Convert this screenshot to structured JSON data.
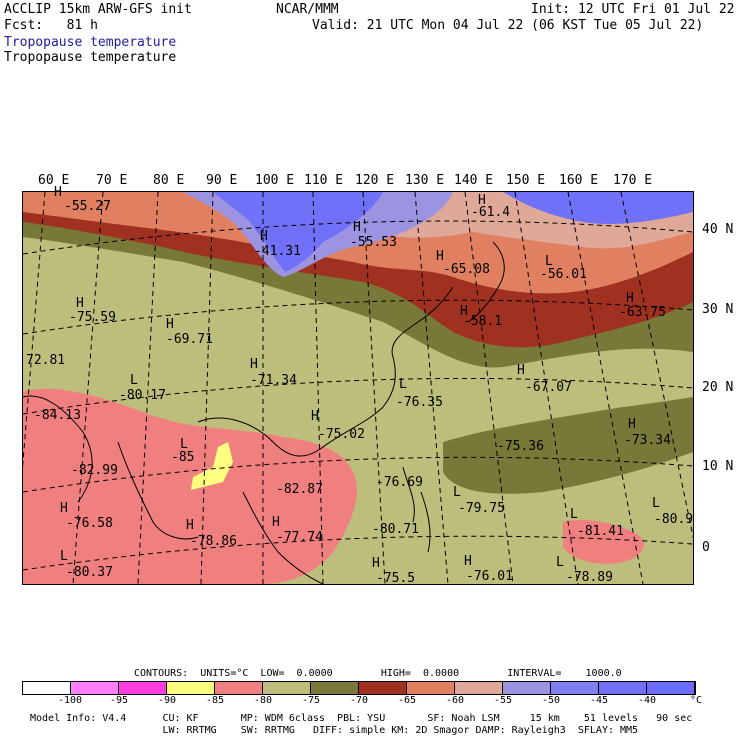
{
  "header": {
    "model": "ACCLIP 15km ARW-GFS init",
    "center": "NCAR/MMM",
    "init": "Init: 12 UTC Fri 01 Jul 22",
    "fcst": "Fcst:   81 h",
    "valid": "Valid: 21 UTC Mon 04 Jul 22 (06 KST Tue 05 Jul 22)",
    "field_title_blue": "Tropopause temperature",
    "field_title_black": "Tropopause temperature",
    "title_blue_color": "#2020a0"
  },
  "lon_labels": [
    "60 E",
    "70 E",
    "80 E",
    "90 E",
    "100 E",
    "110 E",
    "120 E",
    "130 E",
    "140 E",
    "150 E",
    "160 E",
    "170 E"
  ],
  "lat_labels": [
    "40 N",
    "30 N",
    "20 N",
    "10 N",
    "0"
  ],
  "centers": [
    {
      "type": "H",
      "value": "-55.27"
    },
    {
      "type": "H",
      "value": "-41.31"
    },
    {
      "type": "H",
      "value": "-55.53"
    },
    {
      "type": "H",
      "value": "-61.4"
    },
    {
      "type": "H",
      "value": "-65.08"
    },
    {
      "type": "L",
      "value": "-56.01"
    },
    {
      "type": "H",
      "value": "-75.59"
    },
    {
      "type": "H",
      "value": "-69.71"
    },
    {
      "type": "H",
      "value": "-58.1"
    },
    {
      "type": "H",
      "value": "-63.75"
    },
    {
      "type": "",
      "value": "72.81"
    },
    {
      "type": "H",
      "value": "-71.34"
    },
    {
      "type": "L",
      "value": "-80.17"
    },
    {
      "type": "L",
      "value": "-76.35"
    },
    {
      "type": "H",
      "value": "-67.07"
    },
    {
      "type": "",
      "value": "-84.13"
    },
    {
      "type": "H",
      "value": "-75.02"
    },
    {
      "type": "L",
      "value": "-85"
    },
    {
      "type": "",
      "value": "-75.36"
    },
    {
      "type": "H",
      "value": "-73.34"
    },
    {
      "type": "",
      "value": "-82.99"
    },
    {
      "type": "",
      "value": "-82.87"
    },
    {
      "type": "",
      "value": "-76.69"
    },
    {
      "type": "H",
      "value": "-76.58"
    },
    {
      "type": "L",
      "value": "-79.75"
    },
    {
      "type": "L",
      "value": "-80.9"
    },
    {
      "type": "H",
      "value": "-77.74"
    },
    {
      "type": "",
      "value": "-80.71"
    },
    {
      "type": "L",
      "value": "-81.41"
    },
    {
      "type": "H",
      "value": "-78.86"
    },
    {
      "type": "L",
      "value": "-80.37"
    },
    {
      "type": "H",
      "value": "-75.5"
    },
    {
      "type": "H",
      "value": "-76.01"
    },
    {
      "type": "L",
      "value": "-78.89"
    }
  ],
  "colorbar": {
    "contours_text": "CONTOURS:  UNITS=°C  LOW=  0.0000        HIGH=  0.0000        INTERVAL=    1000.0",
    "colors": [
      "#ffffff",
      "#ff80ff",
      "#ff40e0",
      "#ffff80",
      "#f08080",
      "#bebe7c",
      "#787838",
      "#a03020",
      "#e08060",
      "#e0a898",
      "#9c94e0",
      "#8080f0",
      "#7070f8",
      "#6c6cff"
    ],
    "labels": [
      "-100",
      "-95",
      "-90",
      "-85",
      "-80",
      "-75",
      "-70",
      "-65",
      "-60",
      "-55",
      "-50",
      "-45",
      "-40"
    ],
    "unit": "°C"
  },
  "footer": {
    "line1": "Model Info: V4.4      CU: KF       MP: WDM 6class  PBL: YSU       SF: Noah LSM     15 km    51 levels   90 sec",
    "line2": "                      LW: RRTMG    SW: RRTMG   DIFF: simple KM: 2D Smagor DAMP: Rayleigh3  SFLAY: MM5"
  }
}
